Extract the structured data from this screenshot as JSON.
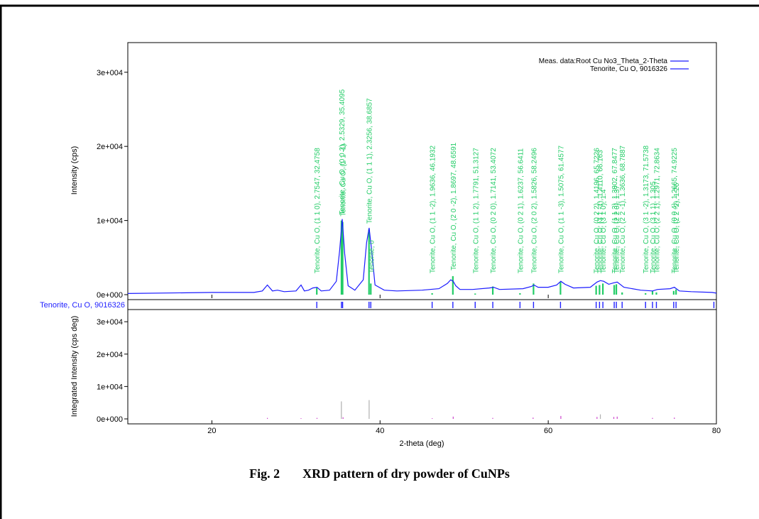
{
  "caption": {
    "fig": "Fig. 2",
    "text": "XRD pattern of dry powder of  CuNPs"
  },
  "colors": {
    "measured": "#1a1aff",
    "reference": "#22cc66",
    "ticks": "#2222ff",
    "integrated": "#b0b0b0",
    "integrated_alt": "#cc44cc"
  },
  "chart_data": [
    {
      "type": "line",
      "title": "",
      "xlabel": "",
      "ylabel": "Intensity (cps)",
      "xlim": [
        10,
        80
      ],
      "ylim": [
        0,
        34000
      ],
      "yticks": [
        0,
        10000,
        20000,
        30000
      ],
      "ytick_labels": [
        "0e+000",
        "1e+004",
        "2e+004",
        "3e+004"
      ],
      "legend": {
        "position": "top-right",
        "entries": [
          "Meas. data:Root Cu No3_Theta_2-Theta",
          "Tenorite, Cu O, 9016326"
        ]
      },
      "series": [
        {
          "name": "Meas. data:Root Cu No3_Theta_2-Theta",
          "x": [
            10,
            20,
            25,
            26,
            26.6,
            27.2,
            27.8,
            28.6,
            30,
            30.6,
            31.0,
            31.5,
            32.0,
            32.5,
            33.0,
            34.0,
            34.8,
            35.2,
            35.5,
            35.8,
            36.2,
            37.0,
            38.0,
            38.4,
            38.7,
            39.0,
            39.4,
            40.5,
            42,
            45,
            47.0,
            48.0,
            48.4,
            48.7,
            49.0,
            49.5,
            51,
            53.0,
            53.5,
            54.2,
            57,
            58.0,
            58.3,
            58.8,
            60,
            61.0,
            61.5,
            62.0,
            63,
            65,
            65.8,
            66.2,
            66.6,
            67.2,
            67.8,
            68.2,
            69,
            71,
            72.4,
            73,
            74.5,
            75.0,
            75.6,
            77,
            79.5,
            80
          ],
          "y": [
            150,
            300,
            300,
            500,
            1300,
            500,
            600,
            400,
            500,
            1300,
            500,
            600,
            900,
            1000,
            500,
            600,
            1800,
            6000,
            10200,
            5500,
            1200,
            600,
            2000,
            7000,
            9000,
            6000,
            1300,
            600,
            500,
            600,
            800,
            1500,
            2000,
            1800,
            1200,
            700,
            700,
            900,
            1000,
            700,
            800,
            1100,
            1300,
            1000,
            1000,
            1300,
            1800,
            1400,
            900,
            1000,
            1700,
            1900,
            1800,
            1400,
            1600,
            1700,
            1000,
            600,
            500,
            700,
            800,
            1000,
            500,
            400,
            300,
            200
          ]
        }
      ],
      "reference_peaks": {
        "name": "Tenorite, Cu O, 9016326",
        "peaks": [
          {
            "x": 32.4758,
            "h": 900,
            "label": "Tenorite, Cu O, (1 1 0), 2.7547, 32.4758"
          },
          {
            "x": 35.4095,
            "h": 10000,
            "label": "Tenorite, Cu O, (0 0 2), 2.5329, 35.4095"
          },
          {
            "x": 35.55,
            "h": 9800,
            "label": "Tenorite, Cu O, (1 1 -1)"
          },
          {
            "x": 38.6857,
            "h": 8800,
            "label": "Tenorite, Cu O, (1 1 1), 2.3256, 38.6857"
          },
          {
            "x": 38.9,
            "h": 1500,
            "label": "Tenorite, 0"
          },
          {
            "x": 46.1932,
            "h": 200,
            "label": "Tenorite, Cu O, (1 1 -2), 1.9636, 46.1932"
          },
          {
            "x": 48.6591,
            "h": 2500,
            "label": "Tenorite, Cu O, (2 0 -2), 1.8697, 48.6591"
          },
          {
            "x": 51.3127,
            "h": 150,
            "label": "Tenorite, Cu O, (1 1 2), 1.7791, 51.3127"
          },
          {
            "x": 53.4072,
            "h": 1100,
            "label": "Tenorite, Cu O, (0 2 0), 1.7141, 53.4072"
          },
          {
            "x": 56.6411,
            "h": 200,
            "label": "Tenorite, Cu O, (0 2 1), 1.6237, 56.6411"
          },
          {
            "x": 58.2496,
            "h": 1500,
            "label": "Tenorite, Cu O, (2 0 2), 1.5826, 58.2496"
          },
          {
            "x": 61.4577,
            "h": 1700,
            "label": "Tenorite, Cu O, (1 1 -3), 1.5075, 61.4577"
          },
          {
            "x": 65.7,
            "h": 1200,
            "label": "Tenorite, Cu O, (0 2 2), 1.4196, 65.7226"
          },
          {
            "x": 66.1,
            "h": 1300,
            "label": "Tenorite, Cu O, (3 1 -1), 1.4110, 66.163"
          },
          {
            "x": 66.5,
            "h": 1500,
            "label": "Tenorite, Cu O, (3 1 0), 1.4"
          },
          {
            "x": 67.8477,
            "h": 1300,
            "label": "Tenorite, Cu O, (1 1 3), 1.3802, 67.8477"
          },
          {
            "x": 68.1,
            "h": 1400,
            "label": "Tenorite, Cu O, (2 2 0), 1.37"
          },
          {
            "x": 68.7887,
            "h": 300,
            "label": "Tenorite, Cu O, (2 2 -1), 1.3636, 68.7887"
          },
          {
            "x": 71.5738,
            "h": 200,
            "label": "Tenorite, Cu O, (3 1 -2), 1.3173, 71.5738"
          },
          {
            "x": 72.4,
            "h": 500,
            "label": "Tenorite, Cu O, (3 1 1), 1.305"
          },
          {
            "x": 72.8634,
            "h": 300,
            "label": "Tenorite, Cu O, (2 2 1), 1.2971, 72.8634"
          },
          {
            "x": 74.9225,
            "h": 500,
            "label": "Tenorite, Cu O, (0 0 4), 1.2665, 74.9225"
          },
          {
            "x": 75.2,
            "h": 700,
            "label": "Tenorite, Cu O, (2 2 -2), 1.26"
          }
        ]
      },
      "grid": false
    },
    {
      "type": "bar",
      "title": "",
      "phase_label": "Tenorite, Cu O, 9016326",
      "phase_ticks": [
        32.4758,
        35.4095,
        35.55,
        38.6857,
        38.9,
        46.1932,
        48.6591,
        51.3127,
        53.4072,
        56.6411,
        58.2496,
        61.4577,
        65.7,
        66.1,
        66.5,
        67.8477,
        68.1,
        68.7887,
        71.5738,
        72.4,
        72.8634,
        74.9225,
        75.2,
        79.7
      ]
    },
    {
      "type": "bar",
      "title": "",
      "xlabel": "2-theta (deg)",
      "ylabel": "Integrated Intensity (cps deg)",
      "xlim": [
        10,
        80
      ],
      "ylim": [
        0,
        32000
      ],
      "xticks": [
        20,
        40,
        60,
        80
      ],
      "yticks": [
        0,
        10000,
        20000,
        30000
      ],
      "ytick_labels": [
        "0e+000",
        "1e+004",
        "2e+004",
        "3e+004"
      ],
      "series": [
        {
          "name": "",
          "x": [
            26.6,
            30.6,
            32.5,
            35.4,
            35.6,
            38.7,
            46.2,
            48.7,
            53.4,
            58.2,
            61.5,
            65.8,
            66.2,
            67.8,
            68.2,
            72.4,
            75.0
          ],
          "values": [
            300,
            200,
            300,
            5400,
            500,
            5800,
            200,
            700,
            300,
            400,
            900,
            600,
            1400,
            600,
            700,
            300,
            400
          ]
        }
      ],
      "grid": false
    }
  ]
}
